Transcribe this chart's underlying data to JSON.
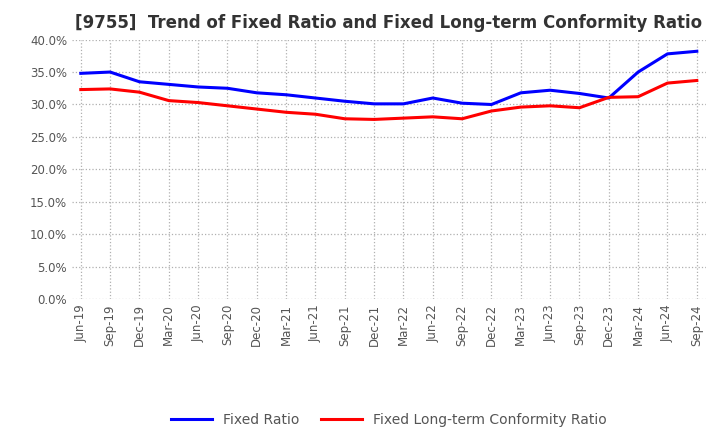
{
  "title": "[9755]  Trend of Fixed Ratio and Fixed Long-term Conformity Ratio",
  "x_labels": [
    "Jun-19",
    "Sep-19",
    "Dec-19",
    "Mar-20",
    "Jun-20",
    "Sep-20",
    "Dec-20",
    "Mar-21",
    "Jun-21",
    "Sep-21",
    "Dec-21",
    "Mar-22",
    "Jun-22",
    "Sep-22",
    "Dec-22",
    "Mar-23",
    "Jun-23",
    "Sep-23",
    "Dec-23",
    "Mar-24",
    "Jun-24",
    "Sep-24"
  ],
  "fixed_ratio": [
    34.8,
    35.0,
    33.5,
    33.1,
    32.7,
    32.5,
    31.8,
    31.5,
    31.0,
    30.5,
    30.1,
    30.1,
    31.0,
    30.2,
    30.0,
    31.8,
    32.2,
    31.7,
    31.0,
    35.0,
    37.8,
    38.2
  ],
  "fixed_lt_ratio": [
    32.3,
    32.4,
    31.9,
    30.6,
    30.3,
    29.8,
    29.3,
    28.8,
    28.5,
    27.8,
    27.7,
    27.9,
    28.1,
    27.8,
    29.0,
    29.6,
    29.8,
    29.5,
    31.1,
    31.2,
    33.3,
    33.7
  ],
  "fixed_ratio_color": "#0000ff",
  "fixed_lt_ratio_color": "#ff0000",
  "ylim": [
    0,
    40
  ],
  "yticks": [
    0.0,
    5.0,
    10.0,
    15.0,
    20.0,
    25.0,
    30.0,
    35.0,
    40.0
  ],
  "background_color": "#ffffff",
  "grid_color": "#b0b0b0",
  "title_fontsize": 12,
  "tick_fontsize": 8.5,
  "legend_fontsize": 10,
  "line_width": 2.2
}
